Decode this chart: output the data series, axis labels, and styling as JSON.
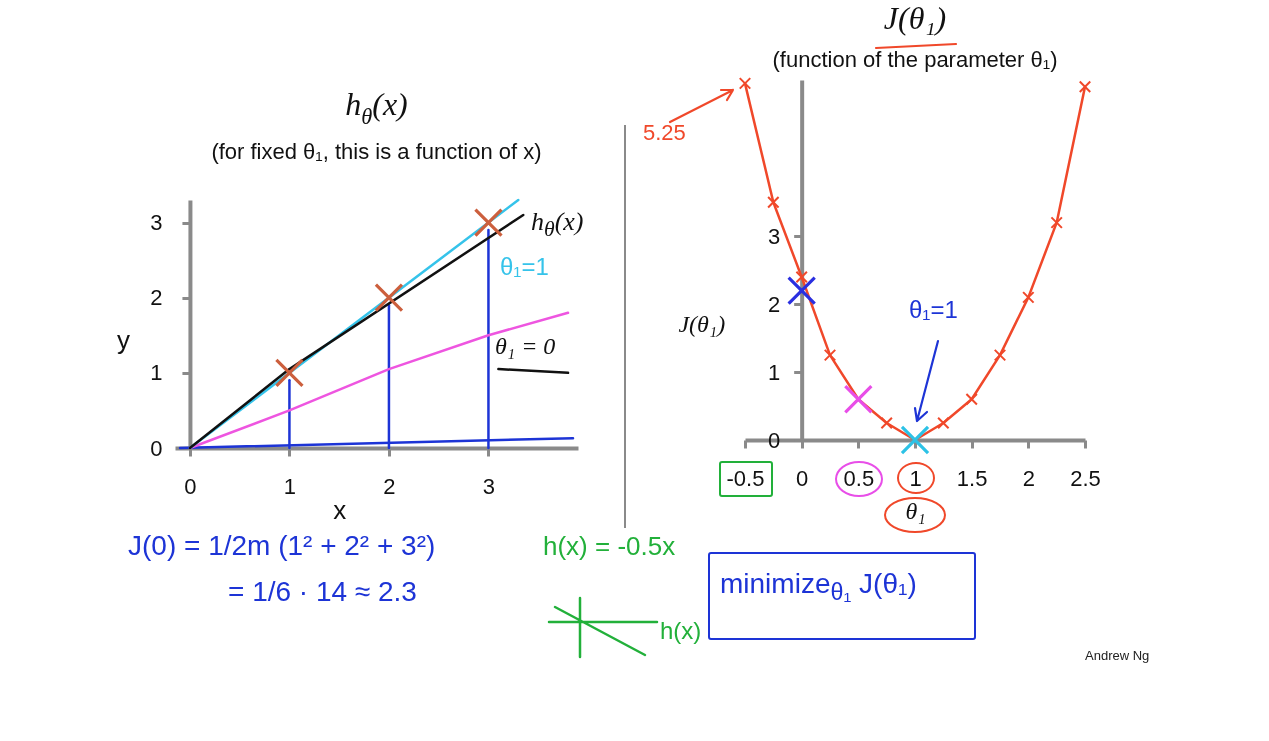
{
  "chart_data": [
    {
      "type": "line",
      "title": "h$_{θ}$(x)",
      "subtitle": "(for fixed θ₁, this is a function of x)",
      "xlabel": "x",
      "ylabel": "y",
      "xlim": [
        -0.15,
        3.9
      ],
      "ylim": [
        0,
        3.3
      ],
      "xticks": [
        0,
        1,
        2,
        3
      ],
      "yticks": [
        0,
        1,
        2,
        3
      ],
      "series": [
        {
          "color": "#1d34d6",
          "x": [
            -0.1,
            3.85
          ],
          "values": [
            0,
            0.13
          ]
        },
        {
          "color": "#1d34d6",
          "x": [
            1,
            1
          ],
          "values": [
            0,
            0.9
          ]
        },
        {
          "color": "#1d34d6",
          "x": [
            2,
            2
          ],
          "values": [
            0,
            1.9
          ]
        },
        {
          "color": "#1d34d6",
          "x": [
            3,
            3
          ],
          "values": [
            0,
            2.9
          ]
        },
        {
          "color": "#ee55e0",
          "x": [
            0,
            1,
            2,
            3,
            3.8
          ],
          "values": [
            0,
            0.5,
            1.05,
            1.5,
            1.8
          ]
        },
        {
          "color": "#35c3ea",
          "x": [
            0,
            3.3
          ],
          "values": [
            0,
            3.3
          ]
        },
        {
          "color": "#111111",
          "x": [
            0,
            1,
            3.35
          ],
          "values": [
            0,
            1.05,
            3.1
          ]
        },
        {
          "color": "#111111",
          "x": [
            3.1,
            3.8
          ],
          "values": [
            1.05,
            1.0
          ]
        },
        {
          "type": "scatter",
          "marker": "cross",
          "color": "#cc5f3d",
          "x": [
            1,
            2,
            3
          ],
          "values": [
            1,
            2,
            3
          ]
        }
      ],
      "annotations": [
        "h$_{θ}$(x)",
        "θ₁=1",
        "θ₁ = 0",
        "J(0) = 1/2m (1² + 2² + 3²)",
        "= 1/6 · 14 ≈ 2.3"
      ]
    },
    {
      "type": "line",
      "title": "J(θ₁)",
      "subtitle": "(function of the parameter θ₁)",
      "xlabel": "θ₁",
      "ylabel": "J(θ₁)",
      "xlim": [
        -0.5,
        2.5
      ],
      "ylim": [
        0,
        5.3
      ],
      "xticks": [
        -0.5,
        0,
        0.5,
        1,
        1.5,
        2,
        2.5
      ],
      "yticks": [
        0,
        1,
        2,
        3
      ],
      "marker": "cross",
      "series": [
        {
          "color": "#f0482a",
          "x": [
            -0.5,
            -0.25,
            0,
            0.25,
            0.5,
            0.75,
            1,
            1.25,
            1.5,
            1.75,
            2,
            2.25,
            2.5
          ],
          "values": [
            5.25,
            3.5,
            2.4,
            1.25,
            0.6,
            0.25,
            0,
            0.25,
            0.6,
            1.25,
            2.1,
            3.2,
            5.2
          ]
        },
        {
          "type": "scatter",
          "color": "#2a2fe0",
          "x": [
            0
          ],
          "values": [
            2.2
          ]
        },
        {
          "type": "scatter",
          "color": "#e84ee8",
          "x": [
            0.5
          ],
          "values": [
            0.6
          ]
        },
        {
          "type": "scatter",
          "color": "#2cc2e6",
          "x": [
            1
          ],
          "values": [
            0
          ]
        }
      ],
      "annotations": [
        "θ₁=1",
        "5.25",
        "h(x) = -0.5x",
        "minimize$_{θ₁}$ J(θ₁)",
        "h(x)",
        "Andrew Ng"
      ]
    }
  ]
}
